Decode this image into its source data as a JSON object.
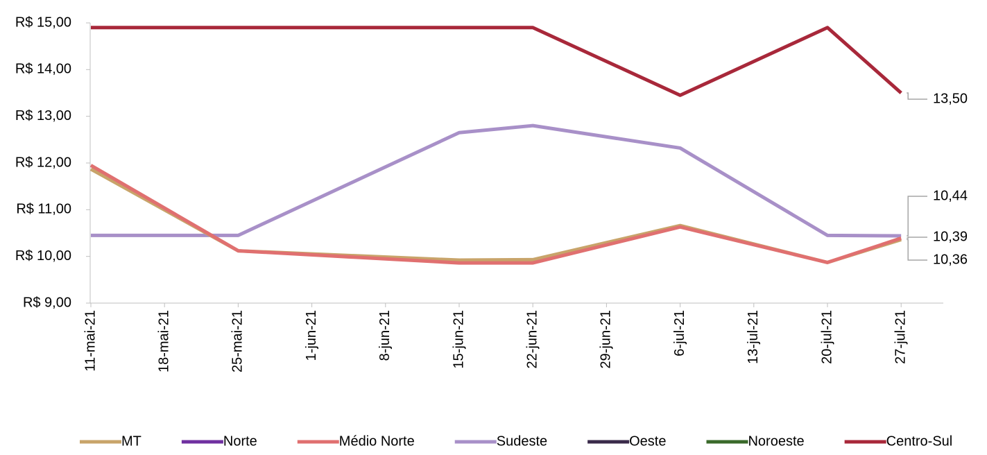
{
  "chart_data": {
    "type": "line",
    "x": [
      "11-mai-21",
      "25-mai-21",
      "15-jun-21",
      "22-jun-21",
      "6-jul-21",
      "20-jul-21",
      "27-jul-21"
    ],
    "xticks": [
      "11-mai-21",
      "18-mai-21",
      "25-mai-21",
      "1-jun-21",
      "8-jun-21",
      "15-jun-21",
      "22-jun-21",
      "29-jun-21",
      "6-jul-21",
      "13-jul-21",
      "20-jul-21",
      "27-jul-21"
    ],
    "ylim": [
      9,
      15
    ],
    "yticks": [
      {
        "value": 9,
        "label": "R$ 9,00"
      },
      {
        "value": 10,
        "label": "R$ 10,00"
      },
      {
        "value": 11,
        "label": "R$ 11,00"
      },
      {
        "value": 12,
        "label": "R$ 12,00"
      },
      {
        "value": 13,
        "label": "R$ 13,00"
      },
      {
        "value": 14,
        "label": "R$ 14,00"
      },
      {
        "value": 15,
        "label": "R$ 15,00"
      }
    ],
    "series": [
      {
        "name": "MT",
        "color": "#c8a46a",
        "values": [
          11.87,
          10.12,
          9.92,
          9.93,
          10.66,
          9.87,
          10.36
        ],
        "value_labels": [
          null,
          null,
          null,
          null,
          null,
          null,
          "10,36"
        ]
      },
      {
        "name": "Norte",
        "color": "#7030a0",
        "values": [
          null,
          null,
          null,
          null,
          null,
          null,
          null
        ]
      },
      {
        "name": "Médio Norte",
        "color": "#e07070",
        "values": [
          11.95,
          10.12,
          9.86,
          9.86,
          10.63,
          9.87,
          10.39
        ],
        "value_labels": [
          null,
          null,
          null,
          null,
          null,
          null,
          "10,39"
        ]
      },
      {
        "name": "Sudeste",
        "color": "#a890c8",
        "values": [
          10.45,
          10.45,
          12.65,
          12.8,
          12.32,
          10.45,
          10.44
        ],
        "value_labels": [
          null,
          null,
          null,
          null,
          null,
          null,
          "10,44"
        ]
      },
      {
        "name": "Oeste",
        "color": "#3a2a4a",
        "values": [
          null,
          null,
          null,
          null,
          null,
          null,
          null
        ]
      },
      {
        "name": "Noroeste",
        "color": "#3a6a2a",
        "values": [
          null,
          null,
          null,
          null,
          null,
          null,
          null
        ]
      },
      {
        "name": "Centro-Sul",
        "color": "#a8283a",
        "values": [
          14.9,
          14.9,
          14.9,
          14.9,
          13.45,
          14.9,
          13.5
        ],
        "value_labels": [
          null,
          null,
          null,
          null,
          null,
          null,
          "13,50"
        ]
      }
    ]
  }
}
